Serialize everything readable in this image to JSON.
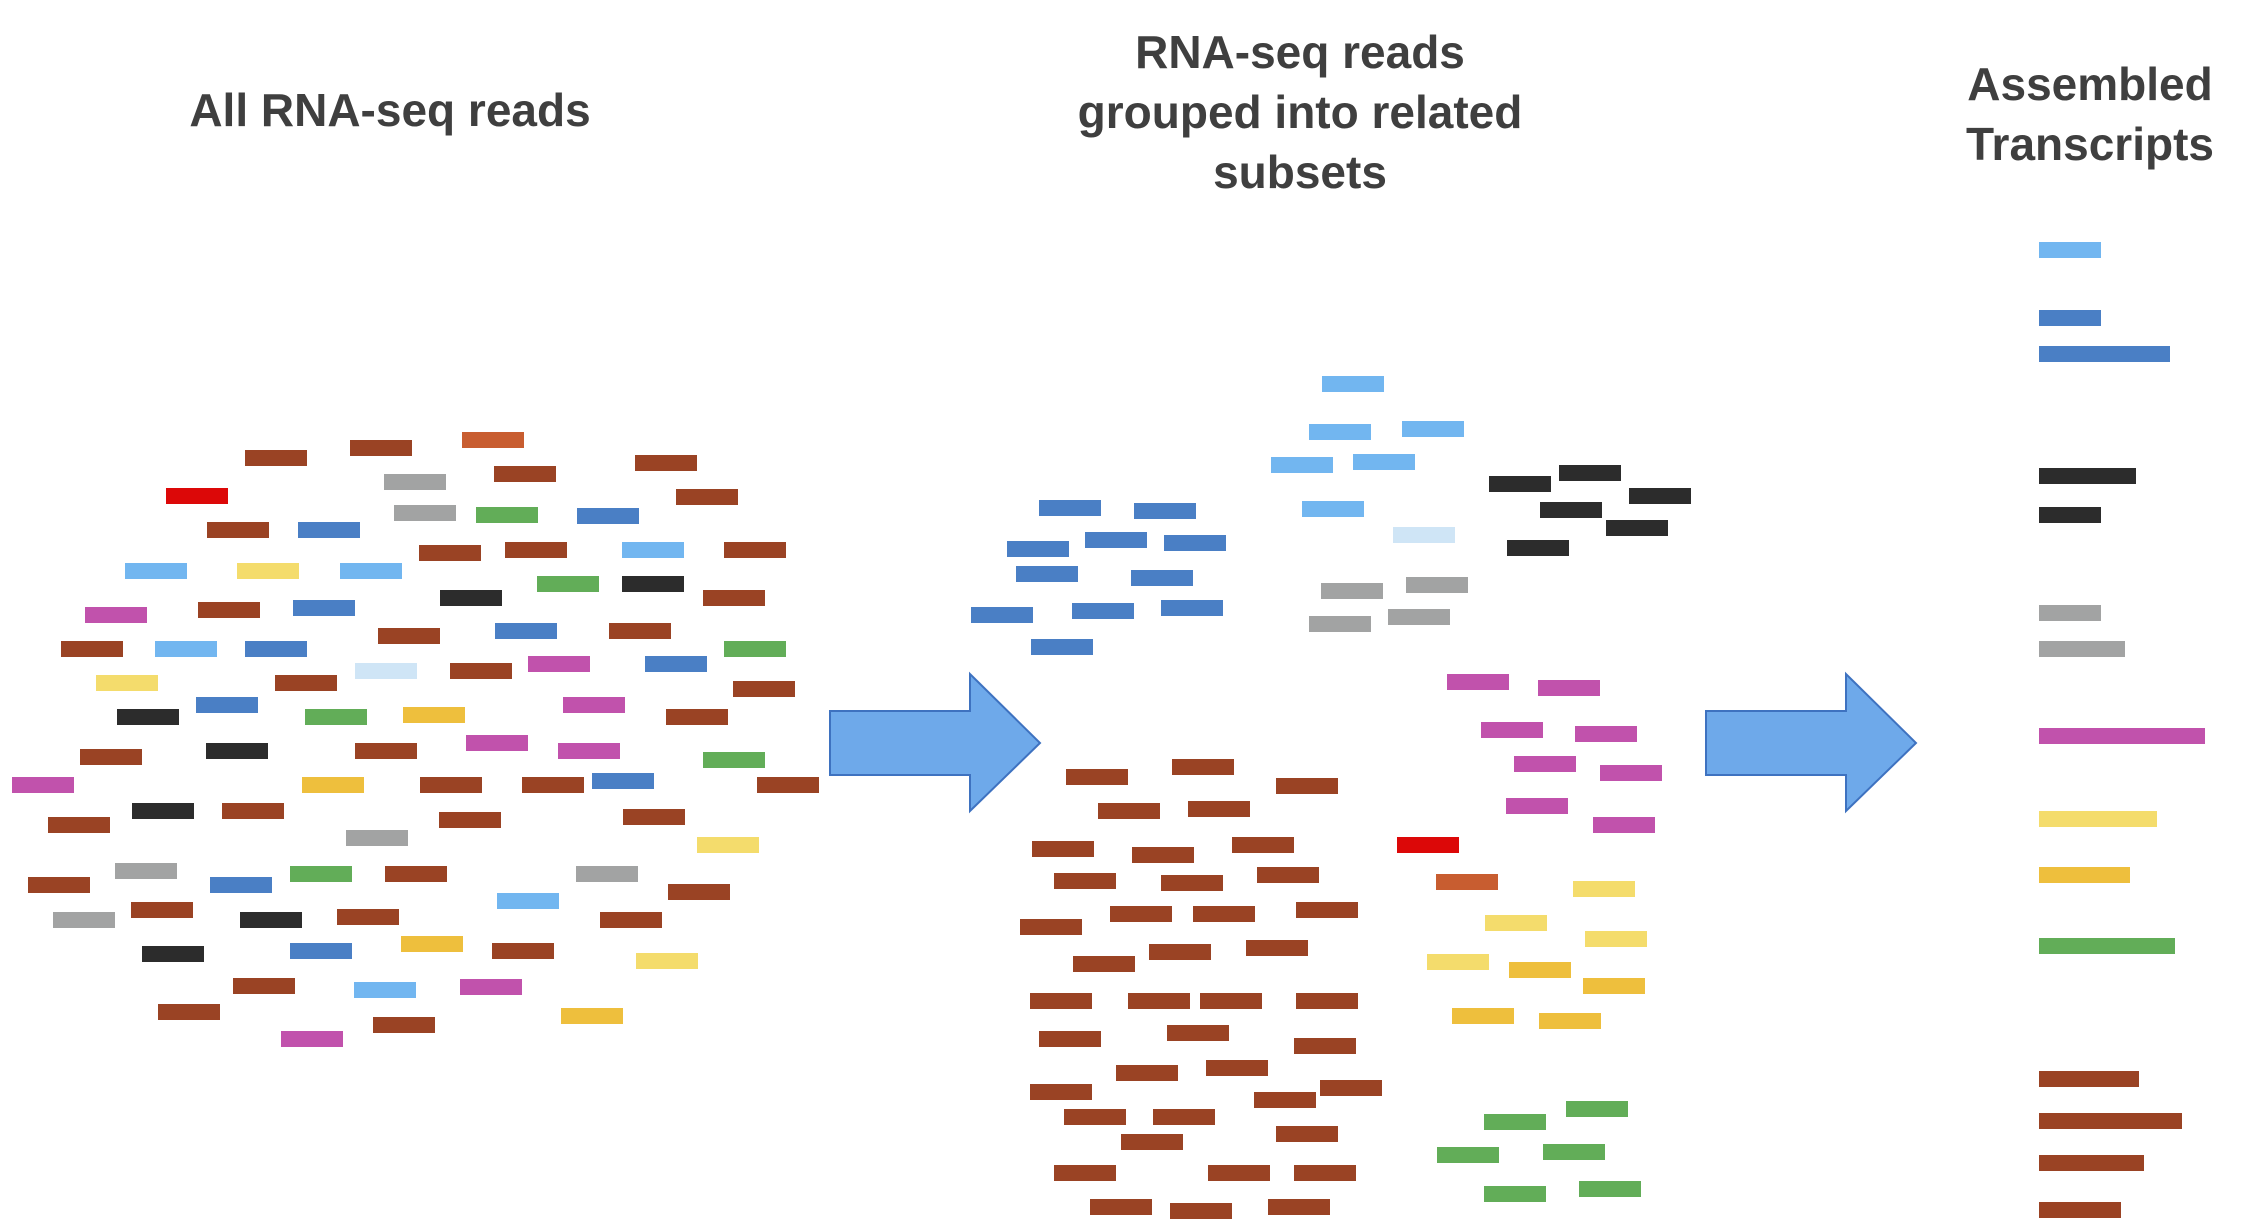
{
  "titles": {
    "left": "All RNA-seq reads",
    "middle": "RNA-seq reads\ngrouped into related\nsubsets",
    "right": "Assembled\nTranscripts"
  },
  "colors": {
    "brown": "#9a4324",
    "blue": "#4a7fc5",
    "light_blue": "#72b6f0",
    "pale_blue": "#cfe5f6",
    "gray": "#a2a3a3",
    "black": "#2c2c2c",
    "magenta": "#c152ac",
    "yellow": "#f4dc6c",
    "gold": "#eebf3d",
    "green": "#62ad58",
    "red": "#dc0808",
    "orange": "#c85d30",
    "arrow_fill": "#6ea9ea",
    "arrow_stroke": "#3e72c0"
  },
  "arrows": [
    {
      "name": "arrow-to-groups"
    },
    {
      "name": "arrow-to-transcripts"
    }
  ]
}
